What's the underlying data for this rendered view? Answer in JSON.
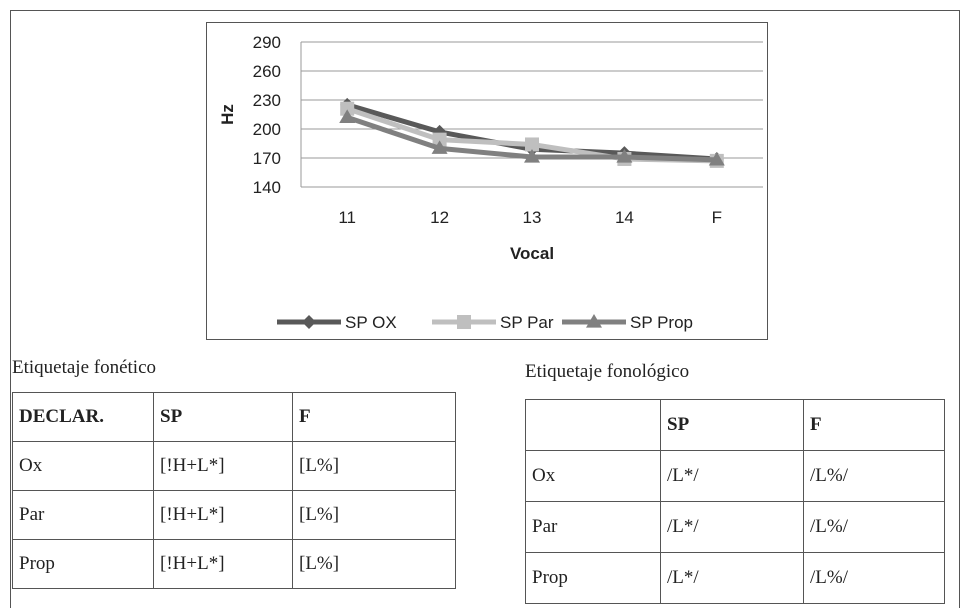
{
  "chart_data": {
    "type": "line",
    "title": "",
    "xlabel": "Vocal",
    "ylabel": "Hz",
    "categories": [
      "11",
      "12",
      "13",
      "14",
      "F"
    ],
    "ylim": [
      140,
      290
    ],
    "yticks": [
      140,
      170,
      200,
      230,
      260,
      290
    ],
    "grid": true,
    "legend_position": "bottom",
    "series": [
      {
        "name": "SP OX",
        "values": [
          225,
          197,
          179,
          175,
          169
        ],
        "color": "#595959",
        "marker": "diamond"
      },
      {
        "name": "SP Par",
        "values": [
          221,
          189,
          184,
          169,
          167
        ],
        "color": "#bfbfbf",
        "marker": "square"
      },
      {
        "name": "SP Prop",
        "values": [
          212,
          180,
          171,
          171,
          168
        ],
        "color": "#808080",
        "marker": "triangle"
      }
    ]
  },
  "tables": {
    "fonetico": {
      "caption": "Etiquetaje fonético",
      "header": [
        "DECLAR.",
        "SP",
        "F"
      ],
      "rows": [
        [
          "Ox",
          "[!H+L*]",
          "[L%]"
        ],
        [
          "Par",
          "[!H+L*]",
          "[L%]"
        ],
        [
          "Prop",
          "[!H+L*]",
          "[L%]"
        ]
      ]
    },
    "fonologico": {
      "caption": "Etiquetaje fonológico",
      "header": [
        "",
        "SP",
        "F"
      ],
      "rows": [
        [
          "Ox",
          "/L*/",
          "/L%/"
        ],
        [
          "Par",
          "/L*/",
          "/L%/"
        ],
        [
          "Prop",
          "/L*/",
          "/L%/"
        ]
      ]
    }
  }
}
